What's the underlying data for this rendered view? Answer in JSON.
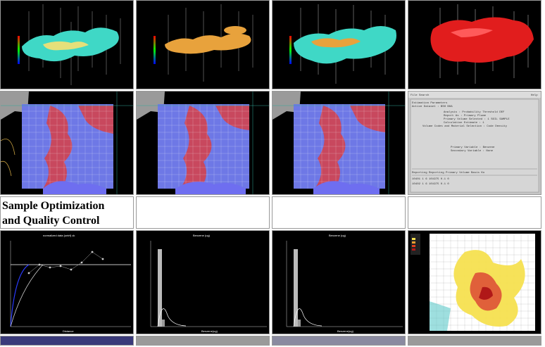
{
  "caption": {
    "line1": "Sample Optimization",
    "line2": "and Quality Control"
  },
  "panels": [
    {
      "name": "isosurface-cyan-1",
      "color": "#3fd8c6"
    },
    {
      "name": "isosurface-orange",
      "color": "#e8a23c"
    },
    {
      "name": "isosurface-cyan-2",
      "color": "#3fd8c6"
    },
    {
      "name": "isosurface-red",
      "color": "#e11d1d"
    }
  ],
  "chart_panels": {
    "variogram_title": "normalized data (untrf) ck",
    "hist1_title": "Benzene (ug)",
    "hist2_title": "Benzene (ug)",
    "x_labels": [
      "Distance",
      "Benzene(ug)",
      "Benzene(ug)"
    ]
  },
  "terminal": {
    "title": "File  Search",
    "menu_right": "Help",
    "header_left": "Estimation Parameters",
    "header_sub": "Active Dataset : BSH BHA",
    "lines": [
      "Analysis : Probability Threshold DEF",
      "Report As : Primary Plume",
      "Primary Volume Selected : 1 SOIL SAMPLE",
      "Calculation Estimate : 1",
      "Volume Codes and Material Selection : Code Density",
      "Primary Variable : Benzene",
      "Secondary Variable : None"
    ],
    "table_header": "Reporting  Reporting Primary   Volume  Basis  Ko",
    "rows": [
      "10401   1   6   101975   0.1   0",
      "10402   1   6   101975   0.1   0"
    ]
  },
  "colors": {
    "blue_map": "#6e78e6",
    "red_map": "#c8485e",
    "grid_line": "#ffffff",
    "terminal_bg": "#c6c6c6"
  }
}
